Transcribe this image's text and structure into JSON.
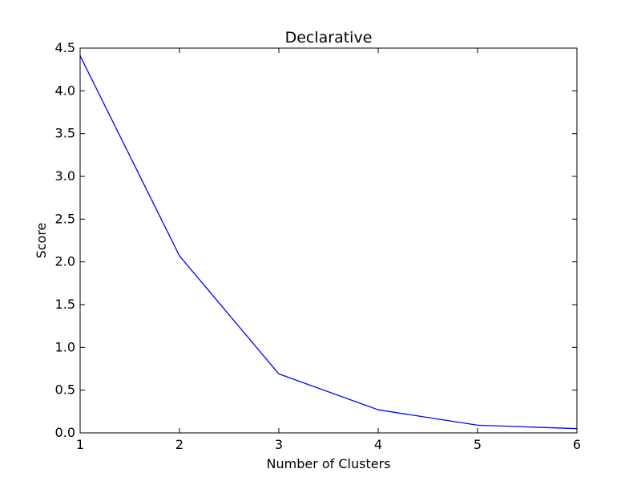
{
  "chart_data": {
    "type": "line",
    "title": "Declarative",
    "xlabel": "Number of Clusters",
    "ylabel": "Score",
    "xlim": [
      1,
      6
    ],
    "ylim": [
      0,
      4.5
    ],
    "x_ticks": [
      "1",
      "2",
      "3",
      "4",
      "5",
      "6"
    ],
    "y_ticks": [
      "0.0",
      "0.5",
      "1.0",
      "1.5",
      "2.0",
      "2.5",
      "3.0",
      "3.5",
      "4.0",
      "4.5"
    ],
    "grid": false,
    "series": [
      {
        "color": "#0000ff",
        "x": [
          1,
          2,
          3,
          4,
          5,
          6
        ],
        "y": [
          4.41,
          2.07,
          0.69,
          0.27,
          0.09,
          0.05
        ]
      }
    ]
  }
}
